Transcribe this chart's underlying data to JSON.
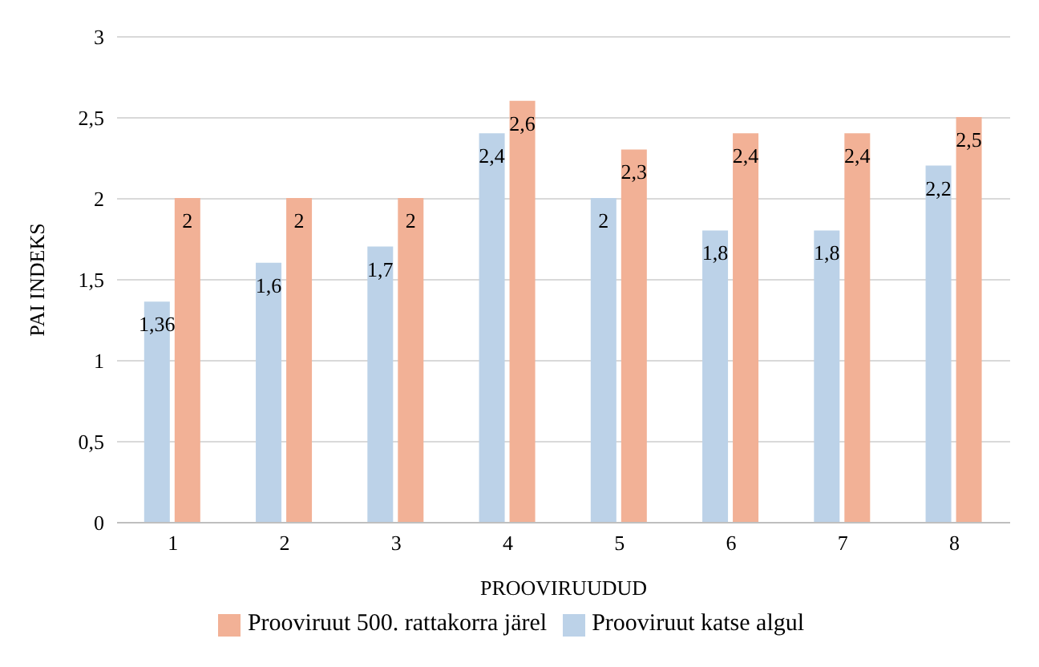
{
  "chart_data": {
    "type": "bar",
    "xlabel": "PROOVIRUUDUD",
    "ylabel": "PAI INDEKS",
    "categories": [
      "1",
      "2",
      "3",
      "4",
      "5",
      "6",
      "7",
      "8"
    ],
    "series": [
      {
        "name": "Prooviruut katse algul",
        "color": "#bcd2e8",
        "values": [
          1.36,
          1.6,
          1.7,
          2.4,
          2,
          1.8,
          1.8,
          2.2
        ],
        "value_labels": [
          "1,36",
          "1,6",
          "1,7",
          "2,4",
          "2",
          "1,8",
          "1,8",
          "2,2"
        ]
      },
      {
        "name": "Prooviruut 500. rattakorra järel",
        "color": "#f2b196",
        "values": [
          2,
          2,
          2,
          2.6,
          2.3,
          2.4,
          2.4,
          2.5
        ],
        "value_labels": [
          "2",
          "2",
          "2",
          "2,6",
          "2,3",
          "2,4",
          "2,4",
          "2,5"
        ]
      }
    ],
    "ylim": [
      0,
      3
    ],
    "yticks": [
      0,
      {
        "value": 0.5,
        "label": "0,5"
      },
      1,
      {
        "value": 1.5,
        "label": "1,5"
      },
      2,
      {
        "value": 2.5,
        "label": "2,5"
      },
      3
    ],
    "grid": "y",
    "legend": "bottom"
  }
}
